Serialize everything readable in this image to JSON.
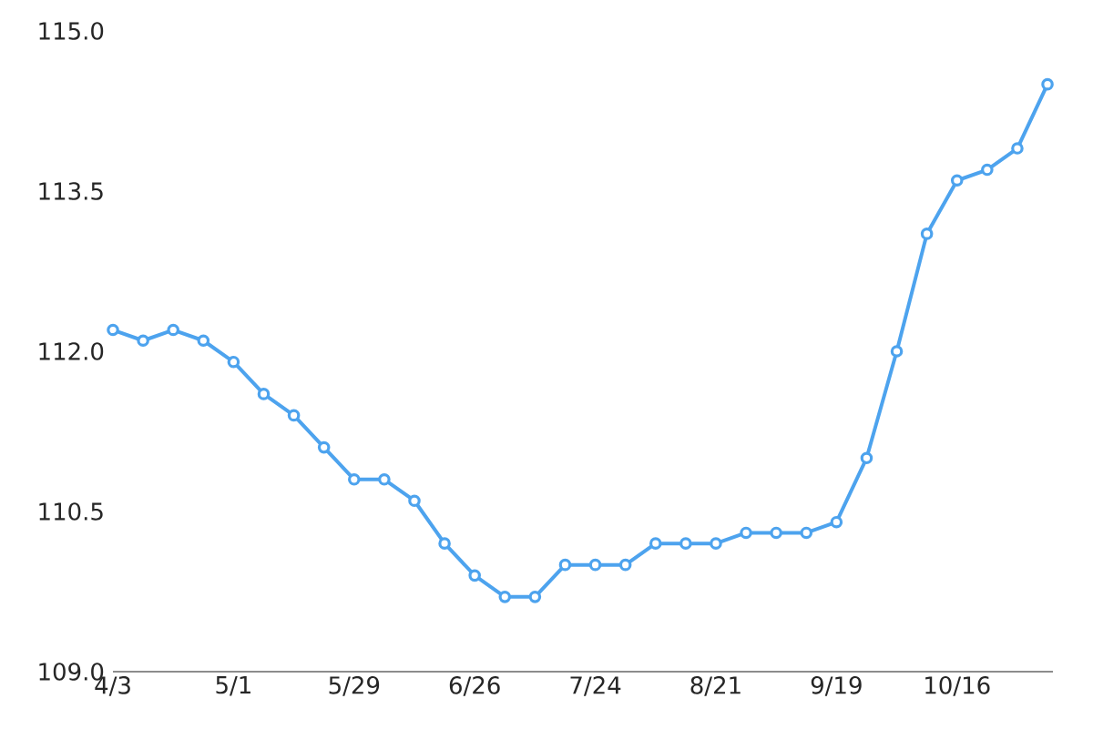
{
  "chart_data": {
    "type": "line",
    "categories": [
      "4/3",
      null,
      null,
      null,
      "5/1",
      null,
      null,
      null,
      "5/29",
      null,
      null,
      null,
      "6/26",
      null,
      null,
      null,
      "7/24",
      null,
      null,
      null,
      "8/21",
      null,
      null,
      null,
      "9/19",
      null,
      null,
      null,
      "10/16",
      null,
      null,
      null
    ],
    "values": [
      112.2,
      112.1,
      112.2,
      112.1,
      111.9,
      111.6,
      111.4,
      111.1,
      110.8,
      110.8,
      110.6,
      110.2,
      109.9,
      109.7,
      109.7,
      110.0,
      110.0,
      110.0,
      110.2,
      110.2,
      110.2,
      110.3,
      110.3,
      110.3,
      110.4,
      111.0,
      112.0,
      113.1,
      113.6,
      113.7,
      113.9,
      114.5
    ],
    "color": "#4da3ee",
    "marker": "circle",
    "line_style": "solid",
    "ylim": [
      109,
      115
    ],
    "yticks": [
      {
        "value": 109,
        "label": "109.0"
      },
      {
        "value": 110.5,
        "label": "110.5"
      },
      {
        "value": 112,
        "label": "112.0"
      },
      {
        "value": 113.5,
        "label": "113.5"
      },
      {
        "value": 115,
        "label": "115.0"
      }
    ]
  }
}
